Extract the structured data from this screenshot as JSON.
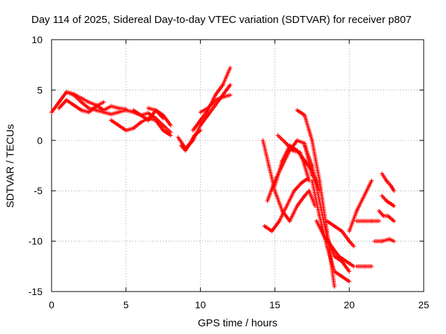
{
  "chart_data": {
    "type": "scatter",
    "title": "Day 114 of 2025, Sidereal Day-to-day VTEC variation (SDTVAR) for receiver p807",
    "xlabel": "GPS time / hours",
    "ylabel": "SDTVAR / TECUs",
    "xlim": [
      0,
      25
    ],
    "ylim": [
      -15,
      10
    ],
    "xticks": [
      "0",
      "5",
      "10",
      "15",
      "20",
      "25"
    ],
    "yticks": [
      "10",
      "5",
      "0",
      "-5",
      "-10",
      "-15"
    ],
    "grid": true,
    "marker": "+",
    "color": "#ff0000",
    "series": [
      {
        "name": "",
        "x": [
          0.0,
          0.5,
          1.0,
          1.5,
          2.0,
          2.5,
          3.0,
          3.5,
          4.0,
          4.5,
          5.0,
          5.5,
          6.0,
          6.5,
          7.0,
          7.5,
          8.0
        ],
        "y": [
          2.8,
          3.8,
          4.8,
          4.5,
          3.8,
          3.2,
          3.0,
          2.8,
          2.6,
          2.8,
          3.0,
          2.8,
          2.5,
          2.7,
          2.2,
          1.5,
          0.8
        ]
      },
      {
        "name": "",
        "x": [
          0.5,
          1.0,
          1.5,
          2.0,
          2.5,
          3.0,
          3.5
        ],
        "y": [
          3.2,
          4.0,
          3.5,
          3.0,
          2.8,
          3.4,
          3.8
        ]
      },
      {
        "name": "",
        "x": [
          1.0,
          1.5,
          2.0,
          2.5,
          3.0,
          3.5,
          4.0,
          4.5,
          5.0
        ],
        "y": [
          4.8,
          4.6,
          4.2,
          3.8,
          3.5,
          3.0,
          3.4,
          3.2,
          3.1
        ]
      },
      {
        "name": "",
        "x": [
          4.0,
          4.5,
          5.0,
          5.5,
          6.0,
          6.5,
          7.0,
          7.5,
          8.0
        ],
        "y": [
          2.0,
          1.5,
          1.0,
          1.2,
          1.8,
          2.2,
          2.0,
          1.0,
          0.5
        ]
      },
      {
        "name": "",
        "x": [
          5.5,
          6.0,
          6.5,
          7.0,
          7.5,
          8.0
        ],
        "y": [
          3.0,
          2.5,
          2.0,
          3.0,
          2.5,
          1.5
        ]
      },
      {
        "name": "",
        "x": [
          6.5,
          7.0,
          7.5
        ],
        "y": [
          3.2,
          3.0,
          2.2
        ]
      },
      {
        "name": "",
        "x": [
          8.5,
          9.0,
          9.5,
          10.0,
          10.5,
          11.0,
          11.5,
          12.0
        ],
        "y": [
          0.3,
          -0.8,
          0.0,
          1.5,
          2.5,
          3.5,
          4.5,
          5.5
        ]
      },
      {
        "name": "",
        "x": [
          8.7,
          9.0,
          9.3,
          9.6,
          10.0
        ],
        "y": [
          -0.5,
          -1.0,
          -0.3,
          0.5,
          1.0
        ]
      },
      {
        "name": "",
        "x": [
          9.5,
          10.0,
          10.5,
          11.0,
          11.5,
          12.0
        ],
        "y": [
          1.0,
          2.0,
          3.0,
          4.5,
          5.5,
          7.2
        ]
      },
      {
        "name": "",
        "x": [
          10.0,
          10.5,
          11.0,
          11.5,
          12.0
        ],
        "y": [
          2.8,
          3.2,
          4.0,
          4.3,
          4.5
        ]
      },
      {
        "name": "",
        "x": [
          14.2,
          14.6,
          15.0,
          15.5,
          16.0,
          16.5,
          17.0,
          17.3,
          17.7
        ],
        "y": [
          0.0,
          -2.5,
          -5.0,
          -7.0,
          -8.0,
          -6.5,
          -5.5,
          -5.0,
          -6.5
        ]
      },
      {
        "name": "",
        "x": [
          14.3,
          14.8,
          15.3,
          15.8,
          16.3,
          16.8,
          17.2
        ],
        "y": [
          -8.5,
          -9.0,
          -8.0,
          -6.5,
          -5.0,
          -4.2,
          -3.8
        ]
      },
      {
        "name": "",
        "x": [
          14.5,
          15.0,
          15.5,
          16.0,
          16.5,
          17.0,
          17.5
        ],
        "y": [
          -6.0,
          -4.0,
          -2.5,
          -1.0,
          0.0,
          -0.3,
          -3.5
        ]
      },
      {
        "name": "",
        "x": [
          15.0,
          15.5,
          16.0,
          16.5,
          17.0,
          17.5,
          18.0
        ],
        "y": [
          -4.5,
          -2.0,
          -0.5,
          -1.0,
          -2.0,
          -3.0,
          -5.0
        ]
      },
      {
        "name": "",
        "x": [
          15.2,
          15.7,
          16.2,
          16.7,
          17.0,
          17.3
        ],
        "y": [
          0.5,
          -0.2,
          -1.0,
          -1.2,
          -2.5,
          -4.0
        ]
      },
      {
        "name": "",
        "x": [
          16.5,
          17.0,
          17.5,
          18.0,
          18.5,
          19.0
        ],
        "y": [
          3.0,
          2.5,
          0.0,
          -4.0,
          -9.0,
          -14.5
        ]
      },
      {
        "name": "",
        "x": [
          17.0,
          17.5,
          18.0,
          18.5,
          19.0,
          19.5,
          20.0
        ],
        "y": [
          -0.5,
          -2.5,
          -6.0,
          -9.5,
          -11.5,
          -12.0,
          -13.0
        ]
      },
      {
        "name": "",
        "x": [
          17.5,
          18.0,
          18.5,
          19.0,
          19.5,
          20.0
        ],
        "y": [
          -4.0,
          -7.5,
          -10.5,
          -13.0,
          -13.5,
          -14.0
        ]
      },
      {
        "name": "",
        "x": [
          17.8,
          18.3,
          18.8,
          19.3,
          19.8,
          20.3
        ],
        "y": [
          -8.0,
          -9.5,
          -10.5,
          -11.5,
          -12.0,
          -12.5
        ]
      },
      {
        "name": "",
        "x": [
          18.5,
          19.0,
          19.5,
          20.0,
          20.3
        ],
        "y": [
          -8.0,
          -8.5,
          -9.0,
          -10.0,
          -10.5
        ]
      },
      {
        "name": "",
        "x": [
          20.5,
          21.0,
          21.5
        ],
        "y": [
          -12.5,
          -12.5,
          -12.5
        ]
      },
      {
        "name": "",
        "x": [
          20.0,
          20.5,
          21.0,
          21.5
        ],
        "y": [
          -9.0,
          -7.0,
          -5.5,
          -4.0
        ]
      },
      {
        "name": "",
        "x": [
          20.5,
          21.0,
          21.5,
          22.0
        ],
        "y": [
          -8.0,
          -8.0,
          -8.0,
          -8.0
        ]
      },
      {
        "name": "",
        "x": [
          21.7,
          22.2,
          22.7,
          23.0
        ],
        "y": [
          -10.0,
          -10.0,
          -9.8,
          -10.0
        ]
      },
      {
        "name": "",
        "x": [
          22.2,
          22.5,
          22.8,
          23.0
        ],
        "y": [
          -3.3,
          -4.0,
          -4.5,
          -5.0
        ]
      },
      {
        "name": "",
        "x": [
          22.2,
          22.5,
          22.8,
          23.0
        ],
        "y": [
          -5.5,
          -6.0,
          -6.3,
          -6.5
        ]
      },
      {
        "name": "",
        "x": [
          22.0,
          22.3,
          22.6,
          23.0
        ],
        "y": [
          -7.0,
          -7.5,
          -7.5,
          -8.0
        ]
      }
    ]
  }
}
